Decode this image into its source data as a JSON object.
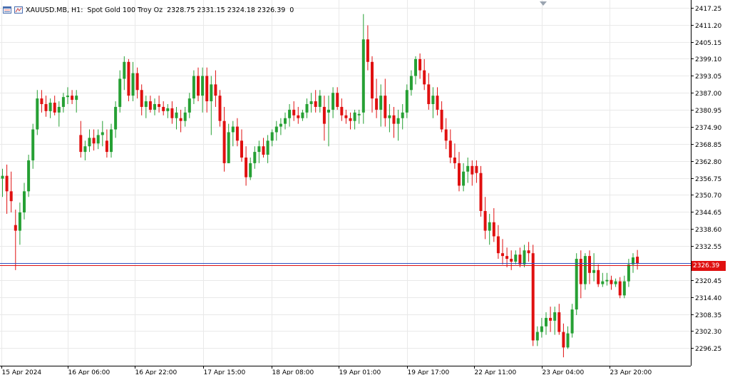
{
  "header": {
    "symbol": "XAUUSD.MB, H1:",
    "description": "Spot Gold 100 Troy Oz",
    "ohlc": "2328.75 2331.15 2324.18 2326.39",
    "volume": "0",
    "icon": "chart-window-icon"
  },
  "current_price_label": "2326.39",
  "colors": {
    "bull": "#26a034",
    "bear": "#e01010",
    "bid_line": "#e01010",
    "ask_line": "#3050c0",
    "grid": "#e9e9e9",
    "axis": "#000000"
  },
  "chart_data": {
    "type": "candlestick",
    "ylim": [
      2290.0,
      2420.0
    ],
    "y_ticks": [
      "2417.25",
      "2411.20",
      "2405.15",
      "2399.10",
      "2393.05",
      "2387.00",
      "2380.95",
      "2374.90",
      "2368.85",
      "2362.80",
      "2356.75",
      "2350.70",
      "2344.65",
      "2338.60",
      "2332.55",
      "2326.39",
      "2320.45",
      "2314.40",
      "2308.35",
      "2302.30",
      "2296.25"
    ],
    "x_ticks": [
      "15 Apr 2024",
      "16 Apr 06:00",
      "16 Apr 22:00",
      "17 Apr 15:00",
      "18 Apr 08:00",
      "19 Apr 01:00",
      "19 Apr 17:00",
      "22 Apr 11:00",
      "23 Apr 04:00",
      "23 Apr 20:00"
    ],
    "current_price": 2326.39,
    "candles": [
      [
        2356.5,
        2360.0,
        2350.0,
        2357.5
      ],
      [
        2357.5,
        2361.5,
        2344.0,
        2352.0
      ],
      [
        2352.0,
        2359.0,
        2344.5,
        2348.5
      ],
      [
        2340.0,
        2345.5,
        2324.0,
        2338.0
      ],
      [
        2338.0,
        2348.0,
        2333.0,
        2344.5
      ],
      [
        2344.5,
        2355.0,
        2342.0,
        2352.0
      ],
      [
        2352.0,
        2365.0,
        2350.0,
        2363.0
      ],
      [
        2363.0,
        2376.0,
        2360.0,
        2374.0
      ],
      [
        2374.0,
        2388.0,
        2372.0,
        2385.0
      ],
      [
        2385.0,
        2388.0,
        2380.0,
        2383.0
      ],
      [
        2383.0,
        2386.0,
        2378.5,
        2380.5
      ],
      [
        2380.5,
        2385.0,
        2378.0,
        2383.5
      ],
      [
        2383.5,
        2386.0,
        2379.0,
        2380.0
      ],
      [
        2380.0,
        2384.0,
        2375.0,
        2382.0
      ],
      [
        2382.0,
        2387.0,
        2380.0,
        2385.5
      ],
      [
        2385.5,
        2389.0,
        2383.0,
        2386.0
      ],
      [
        2386.0,
        2388.0,
        2383.0,
        2384.5
      ],
      [
        2384.5,
        2388.0,
        2380.0,
        2386.0
      ],
      [
        2372.0,
        2377.0,
        2364.0,
        2366.0
      ],
      [
        2366.0,
        2370.0,
        2363.0,
        2368.0
      ],
      [
        2368.0,
        2374.0,
        2366.0,
        2371.0
      ],
      [
        2371.0,
        2374.0,
        2366.5,
        2369.0
      ],
      [
        2369.0,
        2374.0,
        2367.0,
        2372.0
      ],
      [
        2372.0,
        2377.0,
        2368.0,
        2373.0
      ],
      [
        2370.0,
        2374.0,
        2364.0,
        2366.0
      ],
      [
        2366.0,
        2376.0,
        2364.0,
        2374.0
      ],
      [
        2374.0,
        2384.0,
        2371.0,
        2382.0
      ],
      [
        2382.0,
        2395.0,
        2380.0,
        2392.0
      ],
      [
        2392.0,
        2400.0,
        2388.0,
        2398.0
      ],
      [
        2398.0,
        2399.0,
        2384.0,
        2386.0
      ],
      [
        2386.0,
        2398.0,
        2384.0,
        2394.0
      ],
      [
        2394.0,
        2396.0,
        2385.0,
        2388.0
      ],
      [
        2388.0,
        2390.0,
        2379.0,
        2382.0
      ],
      [
        2382.0,
        2386.0,
        2378.0,
        2384.0
      ],
      [
        2384.0,
        2386.0,
        2380.0,
        2381.0
      ],
      [
        2381.0,
        2385.0,
        2379.0,
        2383.0
      ],
      [
        2383.0,
        2386.0,
        2380.0,
        2382.0
      ],
      [
        2382.0,
        2384.0,
        2379.0,
        2380.5
      ],
      [
        2380.5,
        2383.0,
        2378.0,
        2381.5
      ],
      [
        2381.5,
        2384.0,
        2376.0,
        2378.0
      ],
      [
        2378.0,
        2382.0,
        2374.0,
        2380.0
      ],
      [
        2378.0,
        2381.0,
        2373.0,
        2377.0
      ],
      [
        2377.0,
        2382.0,
        2375.0,
        2380.0
      ],
      [
        2380.0,
        2387.0,
        2378.0,
        2385.0
      ],
      [
        2385.0,
        2395.0,
        2383.0,
        2393.0
      ],
      [
        2393.0,
        2396.0,
        2384.0,
        2386.0
      ],
      [
        2386.0,
        2396.0,
        2380.0,
        2393.0
      ],
      [
        2393.0,
        2396.0,
        2380.0,
        2384.0
      ],
      [
        2384.0,
        2393.0,
        2372.0,
        2390.0
      ],
      [
        2390.0,
        2395.0,
        2382.0,
        2386.0
      ],
      [
        2386.0,
        2388.0,
        2375.0,
        2377.0
      ],
      [
        2377.0,
        2382.0,
        2359.0,
        2362.0
      ],
      [
        2362.0,
        2376.0,
        2362.0,
        2373.0
      ],
      [
        2373.0,
        2377.0,
        2368.0,
        2375.0
      ],
      [
        2375.0,
        2378.0,
        2368.0,
        2370.0
      ],
      [
        2370.0,
        2374.0,
        2362.5,
        2364.0
      ],
      [
        2364.0,
        2368.0,
        2354.0,
        2357.0
      ],
      [
        2357.0,
        2364.0,
        2356.0,
        2362.0
      ],
      [
        2362.0,
        2368.0,
        2360.0,
        2366.0
      ],
      [
        2366.0,
        2370.0,
        2362.0,
        2368.0
      ],
      [
        2368.0,
        2371.0,
        2364.0,
        2365.0
      ],
      [
        2365.0,
        2372.0,
        2362.0,
        2370.0
      ],
      [
        2370.0,
        2374.0,
        2368.0,
        2373.0
      ],
      [
        2373.0,
        2377.0,
        2370.0,
        2375.0
      ],
      [
        2375.0,
        2378.0,
        2372.0,
        2376.0
      ],
      [
        2376.0,
        2380.0,
        2374.0,
        2378.0
      ],
      [
        2378.0,
        2383.0,
        2375.0,
        2381.0
      ],
      [
        2381.0,
        2384.0,
        2377.0,
        2379.0
      ],
      [
        2379.0,
        2382.0,
        2376.0,
        2378.0
      ],
      [
        2378.0,
        2381.0,
        2377.0,
        2380.0
      ],
      [
        2380.0,
        2385.0,
        2378.0,
        2383.0
      ],
      [
        2383.0,
        2387.0,
        2380.0,
        2384.0
      ],
      [
        2384.0,
        2388.0,
        2380.0,
        2382.0
      ],
      [
        2382.0,
        2388.0,
        2380.0,
        2386.0
      ],
      [
        2382.0,
        2386.0,
        2370.0,
        2376.0
      ],
      [
        2380.0,
        2386.0,
        2368.0,
        2381.0
      ],
      [
        2381.0,
        2389.0,
        2378.0,
        2387.0
      ],
      [
        2387.0,
        2389.0,
        2381.0,
        2382.0
      ],
      [
        2382.0,
        2385.0,
        2377.0,
        2379.0
      ],
      [
        2379.0,
        2381.0,
        2376.0,
        2378.0
      ],
      [
        2378.0,
        2380.0,
        2374.0,
        2377.0
      ],
      [
        2377.0,
        2381.0,
        2374.0,
        2380.0
      ],
      [
        2379.0,
        2381.0,
        2376.0,
        2379.5
      ],
      [
        2380.0,
        2415.0,
        2376.0,
        2406.0
      ],
      [
        2406.0,
        2411.0,
        2395.0,
        2398.0
      ],
      [
        2398.0,
        2400.0,
        2380.0,
        2385.0
      ],
      [
        2385.0,
        2392.0,
        2378.0,
        2381.0
      ],
      [
        2381.0,
        2390.0,
        2375.0,
        2386.0
      ],
      [
        2386.0,
        2392.0,
        2375.0,
        2378.0
      ],
      [
        2378.0,
        2383.0,
        2373.0,
        2379.0
      ],
      [
        2379.0,
        2382.0,
        2371.0,
        2376.0
      ],
      [
        2376.0,
        2381.0,
        2370.0,
        2378.0
      ],
      [
        2378.0,
        2383.0,
        2374.0,
        2380.0
      ],
      [
        2380.0,
        2390.0,
        2378.0,
        2388.0
      ],
      [
        2388.0,
        2395.0,
        2386.0,
        2393.0
      ],
      [
        2393.0,
        2400.0,
        2390.0,
        2399.0
      ],
      [
        2399.0,
        2401.0,
        2392.0,
        2395.0
      ],
      [
        2395.0,
        2399.0,
        2388.0,
        2390.0
      ],
      [
        2390.0,
        2394.0,
        2381.0,
        2383.0
      ],
      [
        2383.0,
        2389.0,
        2378.0,
        2386.0
      ],
      [
        2386.0,
        2389.0,
        2379.0,
        2381.0
      ],
      [
        2381.0,
        2384.0,
        2373.0,
        2374.0
      ],
      [
        2374.0,
        2378.0,
        2367.0,
        2370.0
      ],
      [
        2370.0,
        2374.0,
        2362.0,
        2364.0
      ],
      [
        2364.0,
        2369.0,
        2360.0,
        2362.0
      ],
      [
        2362.0,
        2366.0,
        2352.0,
        2354.0
      ],
      [
        2354.0,
        2362.0,
        2352.0,
        2359.0
      ],
      [
        2359.0,
        2364.0,
        2355.0,
        2361.0
      ],
      [
        2361.0,
        2363.0,
        2354.0,
        2358.0
      ],
      [
        2361.0,
        2363.0,
        2355.0,
        2358.5
      ],
      [
        2358.5,
        2361.0,
        2343.0,
        2345.0
      ],
      [
        2345.0,
        2350.0,
        2335.0,
        2338.0
      ],
      [
        2338.0,
        2344.0,
        2333.0,
        2341.0
      ],
      [
        2341.0,
        2346.0,
        2334.0,
        2336.0
      ],
      [
        2336.0,
        2340.0,
        2328.0,
        2330.0
      ],
      [
        2330.0,
        2335.0,
        2326.0,
        2329.0
      ],
      [
        2329.0,
        2332.0,
        2325.0,
        2328.0
      ],
      [
        2328.0,
        2331.0,
        2324.0,
        2327.0
      ],
      [
        2327.0,
        2331.0,
        2326.0,
        2329.5
      ],
      [
        2329.5,
        2332.0,
        2325.0,
        2326.0
      ],
      [
        2326.0,
        2333.0,
        2325.0,
        2331.0
      ],
      [
        2331.0,
        2334.0,
        2327.0,
        2330.0
      ],
      [
        2330.0,
        2333.0,
        2297.0,
        2299.0
      ],
      [
        2299.0,
        2304.0,
        2297.0,
        2302.0
      ],
      [
        2302.0,
        2307.0,
        2300.0,
        2304.0
      ],
      [
        2304.0,
        2309.0,
        2301.0,
        2307.0
      ],
      [
        2307.0,
        2311.0,
        2302.0,
        2306.0
      ],
      [
        2306.0,
        2311.0,
        2301.0,
        2309.0
      ],
      [
        2309.0,
        2312.0,
        2301.0,
        2302.0
      ],
      [
        2302.0,
        2305.0,
        2293.0,
        2296.5
      ],
      [
        2296.5,
        2304.0,
        2296.0,
        2301.5
      ],
      [
        2301.5,
        2312.0,
        2300.0,
        2310.0
      ],
      [
        2310.0,
        2330.0,
        2308.0,
        2328.0
      ],
      [
        2328.0,
        2331.0,
        2314.0,
        2319.0
      ],
      [
        2319.0,
        2330.0,
        2317.0,
        2329.0
      ],
      [
        2329.0,
        2331.0,
        2319.0,
        2323.0
      ],
      [
        2323.0,
        2330.0,
        2320.0,
        2324.0
      ],
      [
        2324.0,
        2326.0,
        2318.0,
        2319.0
      ],
      [
        2319.0,
        2323.0,
        2318.0,
        2320.0
      ],
      [
        2320.0,
        2323.0,
        2318.5,
        2320.5
      ],
      [
        2320.5,
        2322.0,
        2317.0,
        2319.0
      ],
      [
        2319.0,
        2321.0,
        2318.0,
        2320.0
      ],
      [
        2320.0,
        2321.5,
        2314.0,
        2315.0
      ],
      [
        2315.0,
        2322.0,
        2314.0,
        2320.0
      ],
      [
        2320.0,
        2328.0,
        2318.0,
        2326.0
      ],
      [
        2326.0,
        2330.0,
        2323.0,
        2328.5
      ],
      [
        2328.75,
        2331.15,
        2324.18,
        2326.39
      ]
    ]
  }
}
